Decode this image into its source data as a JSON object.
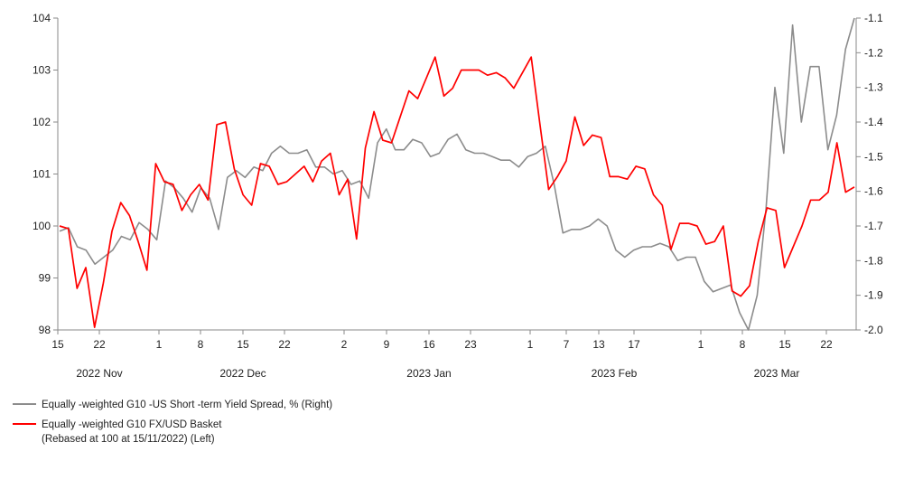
{
  "chart_data": {
    "type": "line",
    "title": "",
    "xlabel": "",
    "left_axis": {
      "ylim": [
        98,
        104
      ],
      "ticks": [
        104,
        103,
        102,
        101,
        100,
        99,
        98
      ]
    },
    "right_axis": {
      "ylim": [
        -2.0,
        -1.1
      ],
      "ticks": [
        "-1.1",
        "-1.2",
        "-1.3",
        "-1.4",
        "-1.5",
        "-1.6",
        "-1.7",
        "-1.8",
        "-1.9",
        "-2.0"
      ]
    },
    "x_day_ticks": [
      "15",
      "22",
      "1",
      "8",
      "15",
      "22",
      "2",
      "9",
      "16",
      "23",
      "1",
      "7",
      "13",
      "17",
      "1",
      "8",
      "15",
      "22"
    ],
    "month_labels": [
      "2022 Nov",
      "2022 Dec",
      "2023 Jan",
      "2023 Feb",
      "2023 Mar"
    ],
    "grid": false,
    "legend_position": "bottom-left",
    "series": [
      {
        "name": "Equally -weighted G10  -US Short -term Yield Spread, % (Right)",
        "axis": "right",
        "color": "#8c8c8c",
        "values": [
          -1.715,
          -1.705,
          -1.76,
          -1.77,
          -1.81,
          -1.79,
          -1.77,
          -1.73,
          -1.74,
          -1.69,
          -1.71,
          -1.74,
          -1.57,
          -1.59,
          -1.62,
          -1.66,
          -1.59,
          -1.62,
          -1.71,
          -1.56,
          -1.54,
          -1.56,
          -1.53,
          -1.54,
          -1.49,
          -1.47,
          -1.49,
          -1.49,
          -1.48,
          -1.53,
          -1.53,
          -1.55,
          -1.54,
          -1.58,
          -1.57,
          -1.62,
          -1.46,
          -1.42,
          -1.48,
          -1.48,
          -1.45,
          -1.46,
          -1.5,
          -1.49,
          -1.45,
          -1.435,
          -1.48,
          -1.49,
          -1.49,
          -1.5,
          -1.51,
          -1.51,
          -1.53,
          -1.5,
          -1.49,
          -1.47,
          -1.58,
          -1.72,
          -1.71,
          -1.71,
          -1.7,
          -1.68,
          -1.7,
          -1.77,
          -1.79,
          -1.77,
          -1.76,
          -1.76,
          -1.75,
          -1.76,
          -1.8,
          -1.79,
          -1.79,
          -1.86,
          -1.89,
          -1.88,
          -1.87,
          -1.95,
          -2.0,
          -1.9,
          -1.65,
          -1.3,
          -1.49,
          -1.12,
          -1.4,
          -1.24,
          -1.24,
          -1.48,
          -1.38,
          -1.19,
          -1.1
        ]
      },
      {
        "name": "Equally -weighted G10 FX/USD Basket (Rebased at 100  at 15/11/2022)  (Left)",
        "axis": "left",
        "color": "#ff0000",
        "values": [
          100.0,
          99.95,
          98.8,
          99.2,
          98.05,
          98.9,
          99.9,
          100.45,
          100.2,
          99.7,
          99.15,
          101.2,
          100.85,
          100.8,
          100.3,
          100.6,
          100.8,
          100.5,
          101.95,
          102.0,
          101.1,
          100.6,
          100.4,
          101.2,
          101.15,
          100.8,
          100.85,
          101.0,
          101.15,
          100.85,
          101.25,
          101.4,
          100.6,
          100.9,
          99.75,
          101.5,
          102.2,
          101.65,
          101.6,
          102.1,
          102.6,
          102.45,
          102.85,
          103.25,
          102.5,
          102.65,
          103.0,
          103.0,
          103.0,
          102.9,
          102.95,
          102.85,
          102.65,
          102.95,
          103.25,
          101.95,
          100.7,
          100.95,
          101.25,
          102.1,
          101.55,
          101.75,
          101.7,
          100.95,
          100.95,
          100.9,
          101.15,
          101.1,
          100.6,
          100.4,
          99.55,
          100.05,
          100.05,
          100.0,
          99.65,
          99.7,
          100.0,
          98.75,
          98.65,
          98.85,
          99.7,
          100.35,
          100.3,
          99.2,
          99.6,
          100.0,
          100.5,
          100.5,
          100.65,
          101.6,
          100.65,
          100.75
        ]
      }
    ]
  },
  "legend": [
    {
      "text": "Equally -weighted G10  -US Short -term Yield Spread, % (Right)",
      "color": "#8c8c8c"
    },
    {
      "text": "Equally -weighted G10 FX/USD Basket\n(Rebased at 100  at 15/11/2022)  (Left)",
      "color": "#ff0000"
    }
  ]
}
